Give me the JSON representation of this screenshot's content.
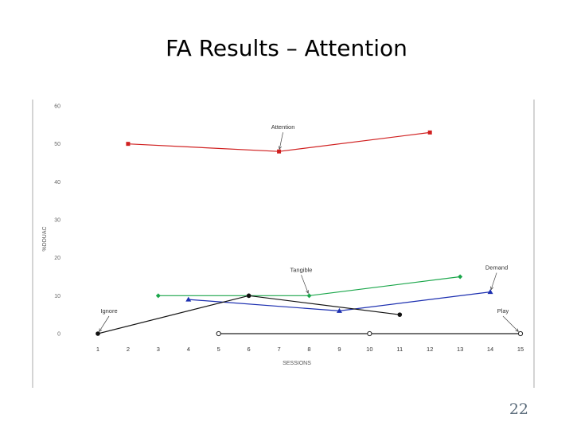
{
  "slide": {
    "title": "FA Results – Attention",
    "page_number": "22"
  },
  "chart_data": {
    "type": "line",
    "xlabel": "SESSIONS",
    "ylabel": "%DDUAC",
    "xlim": [
      1,
      15
    ],
    "ylim": [
      0,
      60
    ],
    "x_ticks": [
      1,
      2,
      3,
      4,
      5,
      6,
      7,
      8,
      9,
      10,
      11,
      12,
      13,
      14,
      15
    ],
    "y_ticks": [
      0,
      10,
      20,
      30,
      40,
      50,
      60
    ],
    "grid": false,
    "series": [
      {
        "name": "Attention",
        "color": "#d02020",
        "marker": "square",
        "x": [
          2,
          7,
          12
        ],
        "y": [
          50,
          48,
          53
        ]
      },
      {
        "name": "Tangible",
        "color": "#1aa64a",
        "marker": "diamond",
        "x": [
          3,
          6,
          8,
          13
        ],
        "y": [
          10,
          10,
          10,
          15
        ]
      },
      {
        "name": "Demand",
        "color": "#1c2fb0",
        "marker": "triangle",
        "x": [
          4,
          9,
          14
        ],
        "y": [
          9,
          6,
          11
        ]
      },
      {
        "name": "Ignore",
        "color": "#111111",
        "marker": "circle",
        "x": [
          1,
          6,
          11
        ],
        "y": [
          0,
          10,
          5
        ]
      },
      {
        "name": "Play",
        "color": "#222222",
        "marker": "open-circle",
        "x": [
          5,
          10,
          15
        ],
        "y": [
          0,
          0,
          0
        ]
      }
    ],
    "annotations": [
      {
        "text": "Attention",
        "series": "Attention",
        "point": [
          7,
          48
        ]
      },
      {
        "text": "Tangible",
        "series": "Tangible",
        "point": [
          8,
          10
        ]
      },
      {
        "text": "Demand",
        "series": "Demand",
        "point": [
          14,
          11
        ]
      },
      {
        "text": "Ignore",
        "series": "Ignore",
        "point": [
          1,
          0
        ]
      },
      {
        "text": "Play",
        "series": "Play",
        "point": [
          15,
          0
        ]
      }
    ]
  }
}
